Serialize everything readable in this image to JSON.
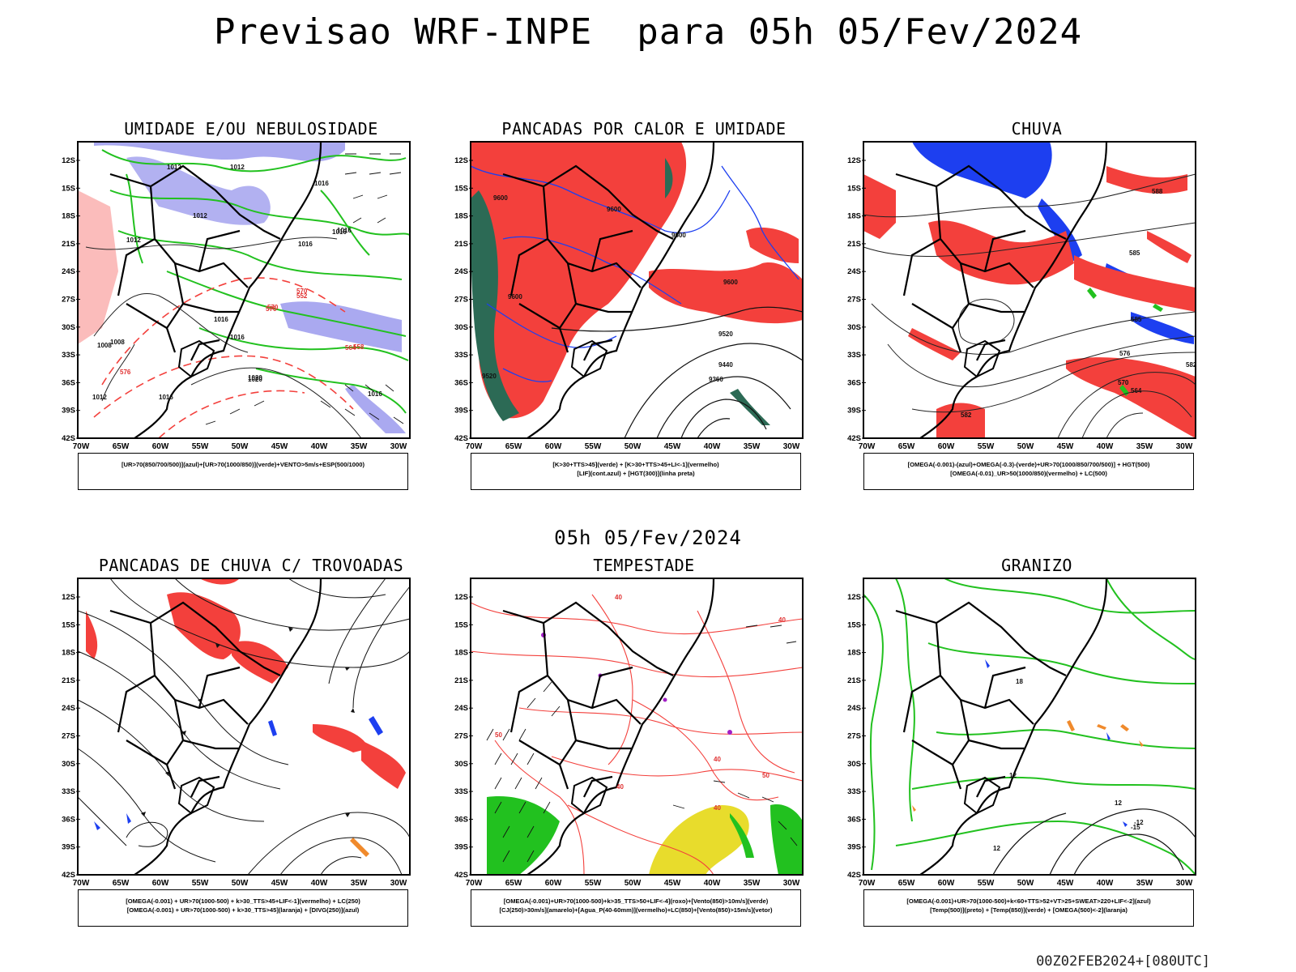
{
  "header": {
    "title": "Previsao WRF-INPE  para 05h 05/Fev/2024",
    "middle_title": "05h 05/Fev/2024",
    "run_stamp": "00Z02FEB2024+[080UTC]"
  },
  "axes": {
    "lat_labels": [
      "12S",
      "15S",
      "18S",
      "21S",
      "24S",
      "27S",
      "30S",
      "33S",
      "36S",
      "39S",
      "42S"
    ],
    "lon_labels": [
      "70W",
      "65W",
      "60W",
      "55W",
      "50W",
      "45W",
      "40W",
      "35W",
      "30W"
    ]
  },
  "colors": {
    "red": "#f3403c",
    "blue": "#1d3ff0",
    "green": "#22c11f",
    "lavender": "#aaa9f0",
    "darkgreen": "#2c6a55",
    "yellow": "#e8dc2c",
    "orange": "#f08a2c",
    "purple": "#a21fc6"
  },
  "panels": [
    {
      "id": "umidade",
      "title": "UMIDADE E/OU NEBULOSIDADE",
      "legend": [
        "[UR>70(850/700/500)](azul)+[UR>70(1000/850)](verde)+VENTO>5m/s+ESP(500/1000)"
      ],
      "contour_labels": [
        "1012",
        "1012",
        "1016",
        "1012",
        "1016",
        "1016",
        "1012",
        "1016",
        "1016",
        "1020",
        "1016",
        "1016",
        "1008",
        "1020",
        "1012",
        "1016",
        "1008",
        "576",
        "570",
        "564",
        "552",
        "558",
        "576",
        "570"
      ]
    },
    {
      "id": "pancadas-calor",
      "title": "PANCADAS POR CALOR E UMIDADE",
      "legend": [
        "[K>30+TTS>45](verde) + [K>30+TTS>45+LI<-1](vermelho)",
        "[LIF](cont.azul) + [HGT(300)](linha preta)"
      ],
      "contour_labels": [
        "9600",
        "9600",
        "9600",
        "9600",
        "9600",
        "9520",
        "9440",
        "9360",
        "9520"
      ]
    },
    {
      "id": "chuva",
      "title": "CHUVA",
      "legend": [
        "[OMEGA(-0.001)-(azul)+OMEGA(-0.3)-(verde)+UR>70(1000/850/700/500)] + HGT(500)",
        "[OMEGA(-0.01)_UR>50(1000/850)(vermelho) + LC(500)"
      ],
      "contour_labels": [
        "588",
        "585",
        "582",
        "576",
        "570",
        "564",
        "582",
        "585"
      ]
    },
    {
      "id": "pancadas-trovoadas",
      "title": "PANCADAS DE CHUVA C/ TROVOADAS",
      "legend": [
        "[OMEGA(-0.001) + UR>70(1000-500) + k>30_TTS>45+LIF<-1](vermelho) + LC(250)",
        "[OMEGA(-0.001) + UR>70(1000-500) + k>30_TTS>45](laranja) + [DIVG(250)](azul)"
      ],
      "contour_labels": []
    },
    {
      "id": "tempestade",
      "title": "TEMPESTADE",
      "legend": [
        "[OMEGA(-0.001)+UR>70(1000-500)+k>35_TTS>50+LIF<-4](roxo)+[Vento(850)>10m/s](verde)",
        "[CJ(250)>30m/s](amarelo)+[Agua_P(40-60mm)](vermelho)+LC(850)+[Vento(850)>15m/s](vetor)"
      ],
      "contour_labels": [
        "40",
        "40",
        "50",
        "40",
        "40",
        "50",
        "40"
      ]
    },
    {
      "id": "granizo",
      "title": "GRANIZO",
      "legend": [
        "[OMEGA(-0.001)+UR>70(1000-500)+k<60+TTS>52+VT>25+SWEAT>220+LIF<-2](azul)",
        "[Temp(500)](preto) + [Temp(850)](verde) + [OMEGA(500)<-2](laranja)"
      ],
      "contour_labels": [
        "-12",
        "-15",
        "12",
        "12",
        "12",
        "18"
      ]
    }
  ]
}
